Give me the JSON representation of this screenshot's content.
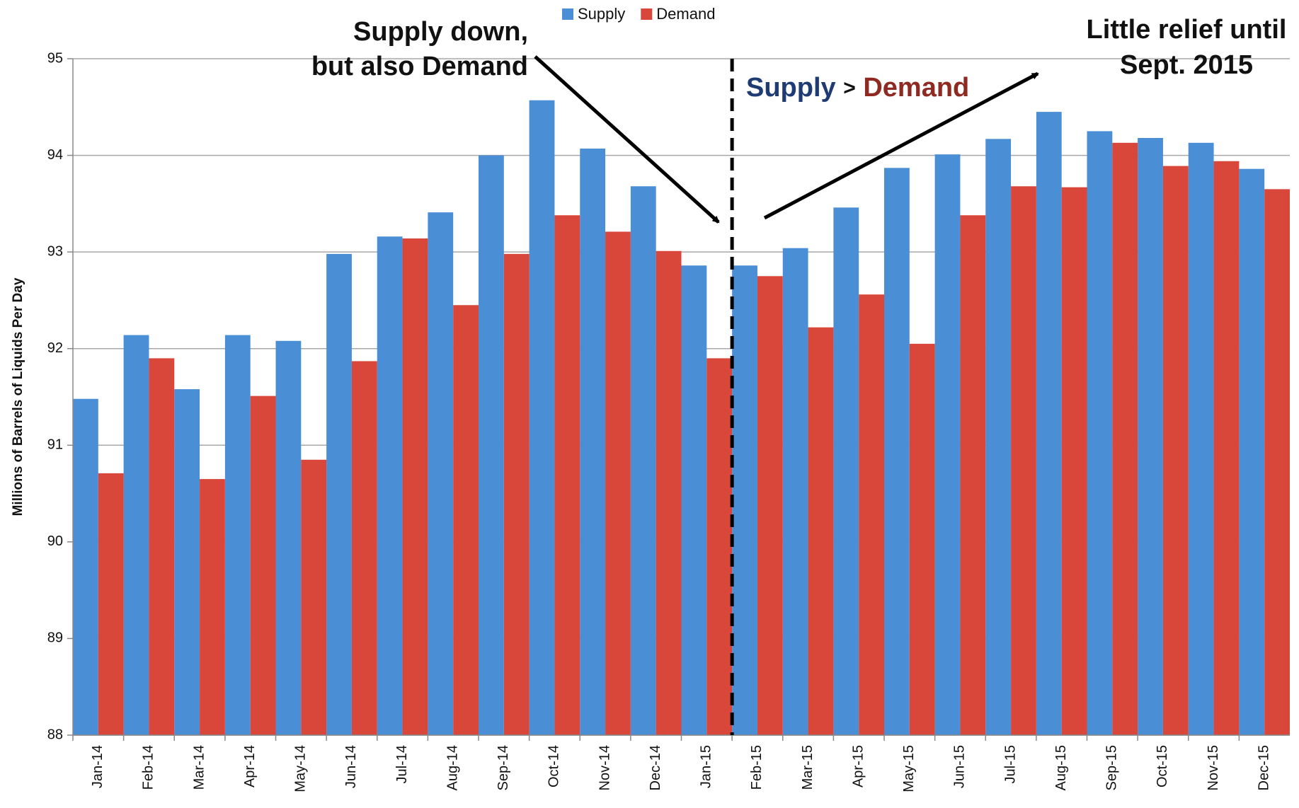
{
  "chart_data": {
    "type": "bar",
    "y_label": "Millions of Barrels of Liquids Per Day",
    "categories": [
      "Jan-14",
      "Feb-14",
      "Mar-14",
      "Apr-14",
      "May-14",
      "Jun-14",
      "Jul-14",
      "Aug-14",
      "Sep-14",
      "Oct-14",
      "Nov-14",
      "Dec-14",
      "Jan-15",
      "Feb-15",
      "Mar-15",
      "Apr-15",
      "May-15",
      "Jun-15",
      "Jul-15",
      "Aug-15",
      "Sep-15",
      "Oct-15",
      "Nov-15",
      "Dec-15"
    ],
    "series": [
      {
        "name": "Supply",
        "color": "#4a8ed6",
        "values": [
          91.48,
          92.14,
          91.58,
          92.14,
          92.08,
          92.98,
          93.16,
          93.41,
          94.0,
          94.57,
          94.07,
          93.68,
          92.86,
          92.86,
          93.04,
          93.46,
          93.87,
          94.01,
          94.17,
          94.45,
          94.25,
          94.18,
          94.13,
          93.86
        ]
      },
      {
        "name": "Demand",
        "color": "#d9473b",
        "values": [
          90.71,
          91.9,
          90.65,
          91.51,
          90.85,
          91.87,
          93.14,
          92.45,
          92.98,
          93.38,
          93.21,
          93.01,
          91.9,
          92.75,
          92.22,
          92.56,
          92.05,
          93.38,
          93.68,
          93.67,
          94.13,
          93.89,
          93.94,
          93.65
        ]
      }
    ],
    "ylim": [
      88,
      95
    ],
    "yticks": [
      88,
      89,
      90,
      91,
      92,
      93,
      94,
      95
    ],
    "grid": true,
    "legend": "top",
    "annotations": [
      {
        "lines": [
          "Supply down,",
          "but also Demand"
        ]
      },
      {
        "parts": [
          "Supply",
          ">",
          "Demand"
        ]
      },
      {
        "lines": [
          "Little relief until",
          "Sept. 2015"
        ]
      }
    ]
  }
}
